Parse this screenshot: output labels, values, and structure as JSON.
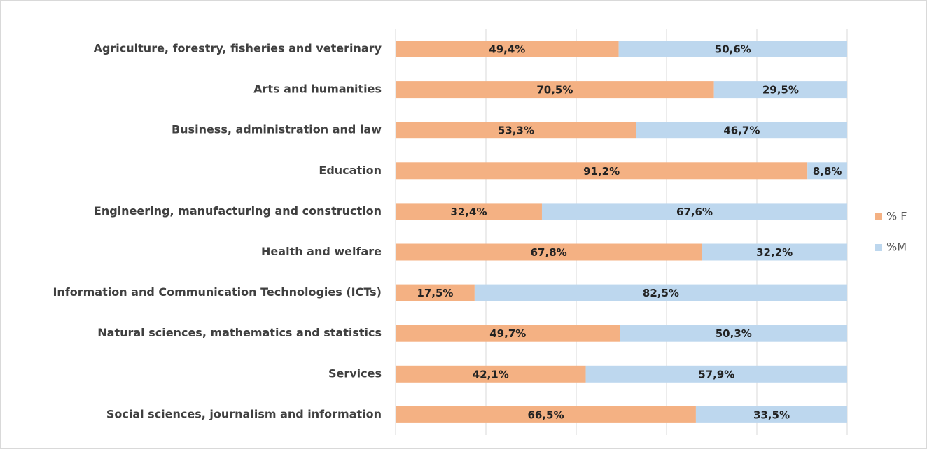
{
  "chart_data": {
    "type": "stacked_barh",
    "categories": [
      "Agriculture, forestry, fisheries and veterinary",
      "Arts and humanities",
      "Business, administration and law",
      "Education",
      "Engineering, manufacturing and construction",
      "Health and welfare",
      "Information and Communication Technologies (ICTs)",
      "Natural sciences, mathematics and statistics",
      "Services",
      "Social sciences, journalism and information"
    ],
    "series": [
      {
        "name": "% F",
        "color": "#F4B183",
        "values": [
          49.4,
          70.5,
          53.3,
          91.2,
          32.4,
          67.8,
          17.5,
          49.7,
          42.1,
          66.5
        ],
        "value_labels": [
          "49,4%",
          "70,5%",
          "53,3%",
          "91,2%",
          "32,4%",
          "67,8%",
          "17,5%",
          "49,7%",
          "42,1%",
          "66,5%"
        ]
      },
      {
        "name": "%M",
        "color": "#BDD7EE",
        "values": [
          50.6,
          29.5,
          46.7,
          8.8,
          67.6,
          32.2,
          82.5,
          50.3,
          57.9,
          33.5
        ],
        "value_labels": [
          "50,6%",
          "29,5%",
          "46,7%",
          "8,8%",
          "67,6%",
          "32,2%",
          "82,5%",
          "50,3%",
          "57,9%",
          "33,5%"
        ]
      }
    ],
    "xlim": [
      0,
      100
    ],
    "xticks": [
      0,
      20,
      40,
      60,
      80,
      100
    ],
    "grid": true,
    "legend": "right"
  }
}
